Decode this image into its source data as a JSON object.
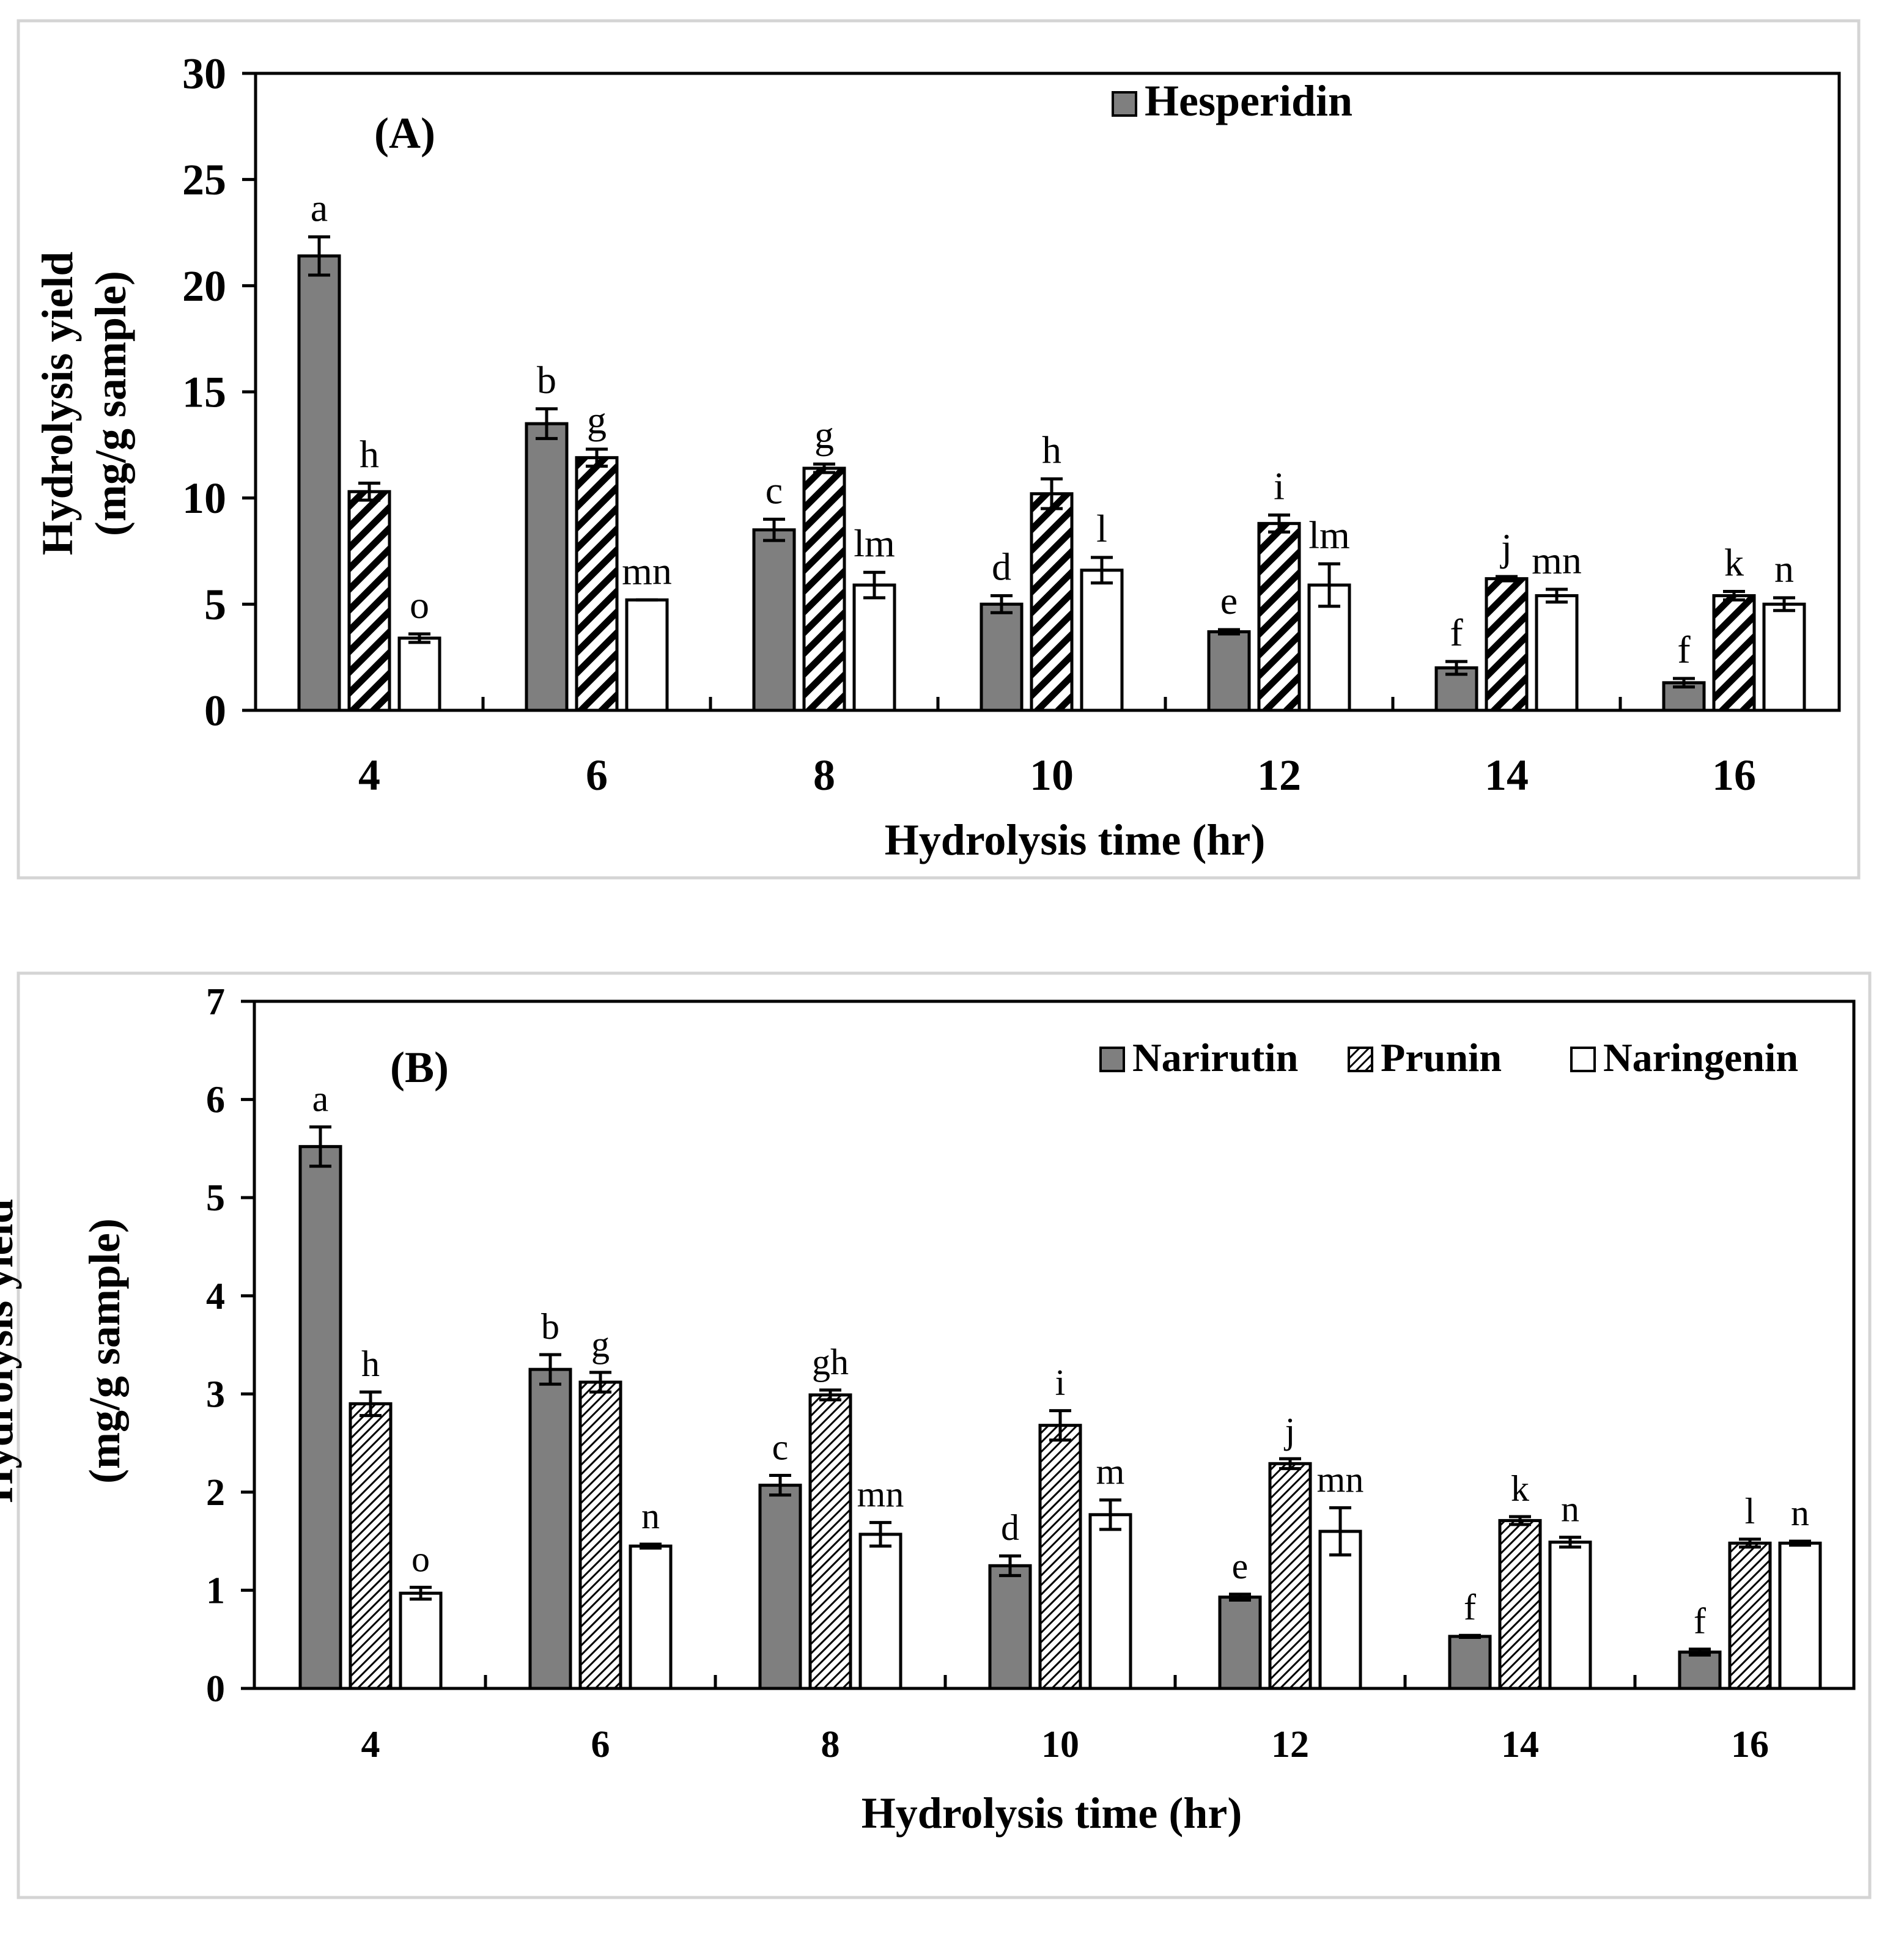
{
  "chart_data": [
    {
      "type": "bar",
      "panel_label": "(A)",
      "x": [
        4,
        6,
        8,
        10,
        12,
        14,
        16
      ],
      "xlabel": "Hydrolysis time (hr)",
      "ylabel": [
        "Hydrolysis yield",
        "(mg/g sample)"
      ],
      "ylim": [
        0,
        30
      ],
      "yticks": [
        0,
        5,
        10,
        15,
        20,
        25,
        30
      ],
      "legend": {
        "position": "top",
        "entries": [
          "Hesperidin"
        ]
      },
      "grid": false,
      "series": [
        {
          "name": "Hesperidin",
          "fill": "gray",
          "values": [
            21.4,
            13.5,
            8.5,
            5.0,
            3.7,
            2.0,
            1.3
          ],
          "errors": [
            0.9,
            0.7,
            0.5,
            0.4,
            0.1,
            0.3,
            0.2
          ],
          "labels": [
            "a",
            "b",
            "c",
            "d",
            "e",
            "f",
            "f"
          ]
        },
        {
          "fill": "hatch",
          "values": [
            10.3,
            11.9,
            11.4,
            10.2,
            8.8,
            6.2,
            5.4
          ],
          "errors": [
            0.4,
            0.4,
            0.2,
            0.7,
            0.4,
            0.1,
            0.2
          ],
          "labels": [
            "h",
            "g",
            "g",
            "h",
            "i",
            "j",
            "k"
          ]
        },
        {
          "fill": "white",
          "values": [
            3.4,
            5.2,
            5.9,
            6.6,
            5.9,
            5.4,
            5.0
          ],
          "errors": [
            0.2,
            0.0,
            0.6,
            0.6,
            1.0,
            0.3,
            0.3
          ],
          "labels": [
            "o",
            "mn",
            "lm",
            "l",
            "lm",
            "mn",
            "n"
          ]
        }
      ]
    },
    {
      "type": "bar",
      "panel_label": "(B)",
      "x": [
        4,
        6,
        8,
        10,
        12,
        14,
        16
      ],
      "xlabel": "Hydrolysis time (hr)",
      "ylabel": [
        "Hydrolysis yield",
        "(mg/g sample)"
      ],
      "ylim": [
        0,
        7
      ],
      "yticks": [
        0,
        1,
        2,
        3,
        4,
        5,
        6,
        7
      ],
      "legend": {
        "position": "top-right",
        "entries": [
          "Narirutin",
          "Prunin",
          "Naringenin"
        ]
      },
      "grid": false,
      "series": [
        {
          "name": "Narirutin",
          "fill": "gray",
          "values": [
            5.52,
            3.25,
            2.07,
            1.25,
            0.93,
            0.53,
            0.37
          ],
          "errors": [
            0.2,
            0.15,
            0.1,
            0.1,
            0.03,
            0.01,
            0.03
          ],
          "labels": [
            "a",
            "b",
            "c",
            "d",
            "e",
            "f",
            "f"
          ]
        },
        {
          "name": "Prunin",
          "fill": "hatch",
          "values": [
            2.9,
            3.12,
            2.99,
            2.68,
            2.29,
            1.71,
            1.48
          ],
          "errors": [
            0.12,
            0.1,
            0.05,
            0.15,
            0.05,
            0.04,
            0.04
          ],
          "labels": [
            "h",
            "g",
            "gh",
            "i",
            "j",
            "k",
            "l"
          ]
        },
        {
          "name": "Naringenin",
          "fill": "white",
          "values": [
            0.97,
            1.45,
            1.57,
            1.77,
            1.6,
            1.49,
            1.48
          ],
          "errors": [
            0.06,
            0.02,
            0.12,
            0.15,
            0.24,
            0.05,
            0.02
          ],
          "labels": [
            "o",
            "n",
            "mn",
            "m",
            "mn",
            "n",
            "n"
          ]
        }
      ]
    }
  ]
}
